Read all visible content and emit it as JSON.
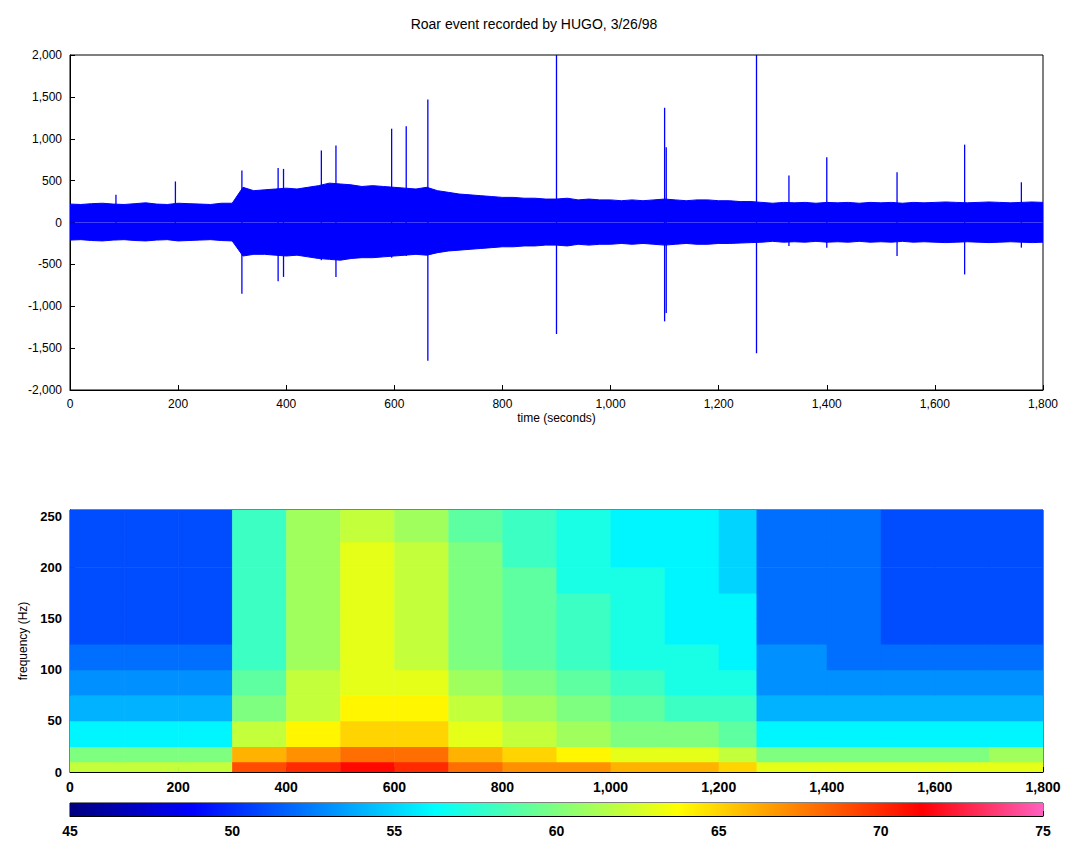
{
  "chart_data": [
    {
      "type": "line",
      "title": "Roar event recorded by HUGO, 3/26/98",
      "xlabel": "time (seconds)",
      "x": [
        0,
        20,
        40,
        60,
        80,
        100,
        120,
        140,
        160,
        180,
        200,
        220,
        240,
        260,
        280,
        300,
        320,
        340,
        360,
        380,
        400,
        420,
        440,
        460,
        480,
        500,
        520,
        540,
        560,
        580,
        600,
        620,
        640,
        660,
        680,
        700,
        720,
        740,
        760,
        780,
        800,
        820,
        840,
        860,
        880,
        900,
        920,
        940,
        960,
        980,
        1000,
        1020,
        1040,
        1060,
        1080,
        1100,
        1120,
        1140,
        1160,
        1180,
        1200,
        1220,
        1240,
        1260,
        1280,
        1300,
        1320,
        1340,
        1360,
        1380,
        1400,
        1420,
        1440,
        1460,
        1480,
        1500,
        1520,
        1540,
        1560,
        1580,
        1600,
        1620,
        1640,
        1660,
        1680,
        1700,
        1720,
        1740,
        1760,
        1780,
        1800
      ],
      "series": [
        {
          "color": "#0000ff",
          "values": [
            220,
            215,
            225,
            230,
            220,
            215,
            225,
            235,
            220,
            215,
            230,
            225,
            220,
            215,
            230,
            230,
            420,
            380,
            390,
            400,
            410,
            400,
            420,
            440,
            470,
            460,
            450,
            430,
            440,
            430,
            420,
            410,
            400,
            420,
            380,
            360,
            340,
            330,
            320,
            310,
            300,
            300,
            290,
            290,
            280,
            280,
            290,
            270,
            280,
            270,
            270,
            260,
            270,
            260,
            270,
            280,
            270,
            260,
            270,
            270,
            260,
            260,
            250,
            250,
            240,
            230,
            240,
            235,
            240,
            230,
            240,
            235,
            240,
            230,
            240,
            235,
            240,
            230,
            240,
            235,
            240,
            245,
            240,
            235,
            240,
            245,
            240,
            235,
            240,
            245,
            240
          ]
        },
        {
          "color": "#0000ff",
          "values": [
            -210,
            -205,
            -215,
            -220,
            -210,
            -205,
            -215,
            -220,
            -210,
            -205,
            -220,
            -215,
            -210,
            -205,
            -215,
            -220,
            -400,
            -380,
            -380,
            -390,
            -400,
            -390,
            -410,
            -430,
            -440,
            -450,
            -430,
            -420,
            -420,
            -410,
            -400,
            -390,
            -380,
            -390,
            -360,
            -340,
            -330,
            -320,
            -310,
            -300,
            -290,
            -290,
            -280,
            -280,
            -270,
            -270,
            -280,
            -260,
            -270,
            -260,
            -260,
            -250,
            -260,
            -250,
            -260,
            -270,
            -260,
            -250,
            -260,
            -260,
            -250,
            -250,
            -245,
            -240,
            -235,
            -225,
            -235,
            -230,
            -235,
            -225,
            -235,
            -230,
            -235,
            -225,
            -235,
            -230,
            -235,
            -225,
            -235,
            -230,
            -235,
            -240,
            -235,
            -230,
            -235,
            -240,
            -235,
            -230,
            -235,
            -240,
            -235
          ]
        }
      ],
      "spikes": {
        "x": [
          85,
          195,
          318,
          385,
          395,
          465,
          492,
          595,
          622,
          662,
          900,
          1100,
          1103,
          1270,
          1330,
          1400,
          1530,
          1655,
          1760
        ],
        "high": [
          330,
          490,
          620,
          650,
          640,
          860,
          920,
          1120,
          1150,
          1470,
          2000,
          1370,
          900,
          2000,
          560,
          780,
          600,
          930,
          480
        ],
        "low": [
          -210,
          -220,
          -850,
          -700,
          -650,
          -450,
          -650,
          -420,
          -400,
          -1650,
          -1330,
          -1180,
          -1080,
          -1560,
          -280,
          -300,
          -400,
          -620,
          -300
        ]
      },
      "xlim": [
        0,
        1800
      ],
      "xticks": [
        0,
        200,
        400,
        600,
        800,
        1000,
        1200,
        1400,
        1600,
        1800
      ],
      "ylim": [
        -2000,
        2000
      ],
      "yticks": [
        -2000,
        -1500,
        -1000,
        -500,
        0,
        500,
        1000,
        1500,
        2000
      ],
      "grid": false
    },
    {
      "type": "heatmap",
      "ylabel": "frequency (Hz)",
      "x_edges": [
        0,
        100,
        200,
        300,
        400,
        500,
        600,
        700,
        800,
        900,
        1000,
        1100,
        1200,
        1270,
        1400,
        1500,
        1600,
        1700,
        1800
      ],
      "y_edges": [
        0,
        10,
        25,
        50,
        75,
        100,
        125,
        150,
        175,
        200,
        225,
        256
      ],
      "cells": [
        [
          62,
          60,
          56,
          54,
          53,
          52,
          51,
          51,
          51,
          51,
          51
        ],
        [
          62,
          60,
          56,
          54,
          53,
          52,
          51,
          51,
          51,
          51,
          51
        ],
        [
          62,
          60,
          56,
          54,
          53,
          52,
          51,
          51,
          51,
          51,
          51
        ],
        [
          69,
          66,
          62,
          60,
          59,
          58,
          58,
          58,
          58,
          58,
          58
        ],
        [
          70,
          67,
          64,
          62,
          62,
          61,
          61,
          61,
          61,
          61,
          61
        ],
        [
          71,
          68,
          65,
          64,
          63,
          63,
          63,
          63,
          63,
          63,
          62
        ],
        [
          70,
          68,
          65,
          64,
          63,
          62,
          62,
          62,
          62,
          62,
          61
        ],
        [
          68,
          66,
          63,
          62,
          61,
          60,
          60,
          60,
          60,
          60,
          59
        ],
        [
          67,
          65,
          62,
          61,
          60,
          59,
          59,
          59,
          59,
          58,
          58
        ],
        [
          67,
          64,
          61,
          60,
          59,
          58,
          58,
          58,
          57,
          57,
          57
        ],
        [
          66,
          63,
          60,
          59,
          58,
          57,
          57,
          57,
          57,
          56,
          56
        ],
        [
          66,
          63,
          60,
          58,
          57,
          57,
          56,
          56,
          56,
          56,
          56
        ],
        [
          65,
          62,
          59,
          58,
          57,
          56,
          56,
          56,
          55,
          55,
          55
        ],
        [
          63,
          60,
          56,
          54,
          53,
          53,
          52,
          52,
          52,
          52,
          52
        ],
        [
          63,
          60,
          56,
          54,
          53,
          52,
          52,
          52,
          52,
          52,
          52
        ],
        [
          63,
          60,
          56,
          54,
          53,
          52,
          51,
          51,
          51,
          51,
          51
        ],
        [
          63,
          60,
          56,
          54,
          53,
          52,
          51,
          51,
          51,
          51,
          51
        ],
        [
          63,
          61,
          56,
          54,
          53,
          52,
          51,
          51,
          51,
          51,
          51
        ]
      ],
      "xlim": [
        0,
        1800
      ],
      "xticks": [
        0,
        200,
        400,
        600,
        800,
        1000,
        1200,
        1400,
        1600,
        1800
      ],
      "ylim": [
        0,
        256
      ],
      "yticks": [
        0,
        50,
        100,
        150,
        200,
        250
      ],
      "colorbar": {
        "range": [
          45,
          75
        ],
        "ticks": [
          45,
          50,
          55,
          60,
          65,
          70,
          75
        ]
      },
      "grid": false
    }
  ]
}
